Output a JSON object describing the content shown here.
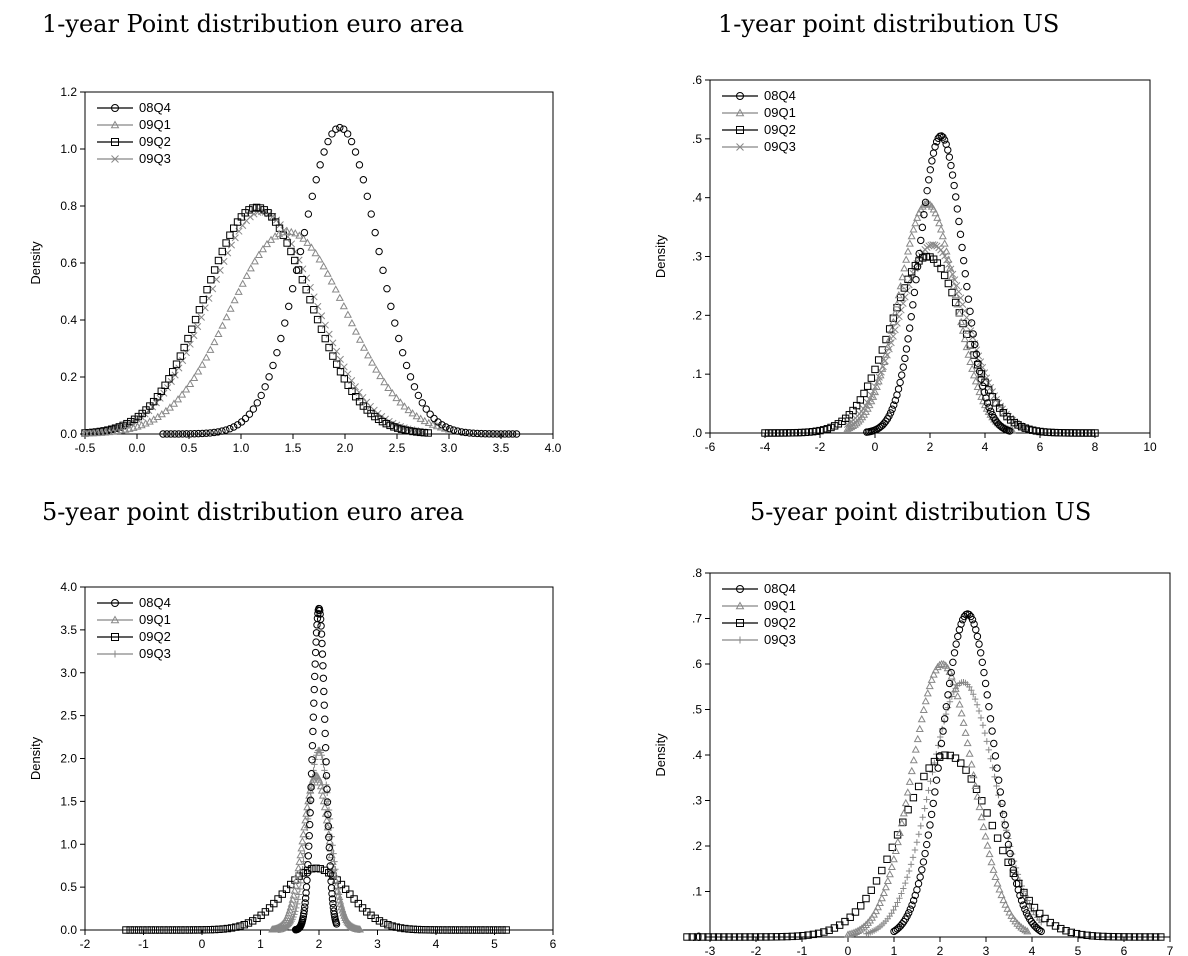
{
  "chart_data": [
    {
      "type": "line",
      "title": "1-year Point distribution euro area",
      "xlabel": "",
      "ylabel": "Density",
      "xlim": [
        -0.5,
        4.0
      ],
      "ylim": [
        0.0,
        1.2
      ],
      "x_ticks": [
        -0.5,
        0.0,
        0.5,
        1.0,
        1.5,
        2.0,
        2.5,
        3.0,
        3.5,
        4.0
      ],
      "x_tick_labels": [
        "-0.5",
        "0.0",
        "0.5",
        "1.0",
        "1.5",
        "2.0",
        "2.5",
        "3.0",
        "3.5",
        "4.0"
      ],
      "y_ticks": [
        0.0,
        0.2,
        0.4,
        0.6,
        0.8,
        1.0,
        1.2
      ],
      "y_tick_labels": [
        "0.0",
        "0.2",
        "0.4",
        "0.6",
        "0.8",
        "1.0",
        "1.2"
      ],
      "grid": false,
      "legend": "top-left",
      "series": [
        {
          "name": "08Q4",
          "marker": "circle",
          "color": "#000000",
          "mean": 1.95,
          "peak": 1.075,
          "x_range": [
            0.25,
            3.65
          ]
        },
        {
          "name": "09Q1",
          "marker": "triangle",
          "color": "#888888",
          "mean": 1.45,
          "peak": 0.71,
          "x_range": [
            -0.5,
            3.0
          ]
        },
        {
          "name": "09Q2",
          "marker": "square",
          "color": "#000000",
          "mean": 1.15,
          "peak": 0.795,
          "x_range": [
            -0.5,
            2.8
          ]
        },
        {
          "name": "09Q3",
          "marker": "x",
          "color": "#888888",
          "mean": 1.2,
          "peak": 0.78,
          "x_range": [
            -0.5,
            2.75
          ]
        }
      ]
    },
    {
      "type": "line",
      "title": "1-year point distribution US",
      "xlabel": "",
      "ylabel": "Density",
      "xlim": [
        -6,
        10
      ],
      "ylim": [
        0.0,
        0.6
      ],
      "x_ticks": [
        -6,
        -4,
        -2,
        0,
        2,
        4,
        6,
        8,
        10
      ],
      "x_tick_labels": [
        "-6",
        "-4",
        "-2",
        "0",
        "2",
        "4",
        "6",
        "8",
        "10"
      ],
      "y_ticks": [
        0.0,
        0.1,
        0.2,
        0.3,
        0.4,
        0.5,
        0.6
      ],
      "y_tick_labels": [
        ".0",
        ".1",
        ".2",
        ".3",
        ".4",
        ".5",
        ".6"
      ],
      "grid": false,
      "legend": "top-left",
      "series": [
        {
          "name": "08Q4",
          "marker": "circle",
          "color": "#000000",
          "mean": 2.4,
          "peak": 0.505,
          "x_range": [
            -0.3,
            4.9
          ]
        },
        {
          "name": "09Q1",
          "marker": "triangle",
          "color": "#888888",
          "mean": 1.9,
          "peak": 0.39,
          "x_range": [
            -1.0,
            5.0
          ]
        },
        {
          "name": "09Q2",
          "marker": "square",
          "color": "#000000",
          "mean": 1.9,
          "peak": 0.3,
          "x_range": [
            -4.0,
            8.0
          ]
        },
        {
          "name": "09Q3",
          "marker": "x",
          "color": "#888888",
          "mean": 2.1,
          "peak": 0.32,
          "x_range": [
            -1.0,
            5.5
          ]
        }
      ]
    },
    {
      "type": "line",
      "title": "5-year point distribution euro area",
      "xlabel": "",
      "ylabel": "Density",
      "xlim": [
        -2,
        6
      ],
      "ylim": [
        0.0,
        4.0
      ],
      "x_ticks": [
        -2,
        -1,
        0,
        1,
        2,
        3,
        4,
        5,
        6
      ],
      "x_tick_labels": [
        "-2",
        "-1",
        "0",
        "1",
        "2",
        "3",
        "4",
        "5",
        "6"
      ],
      "y_ticks": [
        0.0,
        0.5,
        1.0,
        1.5,
        2.0,
        2.5,
        3.0,
        3.5,
        4.0
      ],
      "y_tick_labels": [
        "0.0",
        "0.5",
        "1.0",
        "1.5",
        "2.0",
        "2.5",
        "3.0",
        "3.5",
        "4.0"
      ],
      "grid": false,
      "legend": "top-left",
      "series": [
        {
          "name": "08Q4",
          "marker": "circle",
          "color": "#000000",
          "mean": 2.0,
          "peak": 3.75,
          "x_range": [
            1.6,
            2.3
          ]
        },
        {
          "name": "09Q1",
          "marker": "triangle",
          "color": "#888888",
          "mean": 1.95,
          "peak": 1.8,
          "x_range": [
            1.2,
            2.7
          ]
        },
        {
          "name": "09Q2",
          "marker": "square",
          "color": "#000000",
          "mean": 1.95,
          "peak": 0.72,
          "x_range": [
            -1.3,
            5.2
          ]
        },
        {
          "name": "09Q3",
          "marker": "plus",
          "color": "#888888",
          "mean": 2.0,
          "peak": 2.1,
          "x_range": [
            1.3,
            2.7
          ]
        }
      ]
    },
    {
      "type": "line",
      "title": "5-year point distribution US",
      "xlabel": "",
      "ylabel": "Density",
      "xlim": [
        -3,
        7
      ],
      "ylim": [
        0.0,
        0.8
      ],
      "x_ticks": [
        -3,
        -2,
        -1,
        0,
        1,
        2,
        3,
        4,
        5,
        6,
        7
      ],
      "x_tick_labels": [
        "-3",
        "-2",
        "-1",
        "0",
        "1",
        "2",
        "3",
        "4",
        "5",
        "6",
        "7"
      ],
      "y_ticks": [
        0.0,
        0.1,
        0.2,
        0.3,
        0.4,
        0.5,
        0.6,
        0.7,
        0.8
      ],
      "y_tick_labels": [
        ".0",
        ".1",
        ".2",
        ".3",
        ".4",
        ".5",
        ".6",
        ".7",
        ".8"
      ],
      "grid": false,
      "legend": "top-left",
      "series": [
        {
          "name": "08Q4",
          "marker": "circle",
          "color": "#000000",
          "mean": 2.6,
          "peak": 0.71,
          "x_range": [
            1.0,
            4.2
          ]
        },
        {
          "name": "09Q1",
          "marker": "triangle",
          "color": "#888888",
          "mean": 2.05,
          "peak": 0.6,
          "x_range": [
            0.0,
            3.9
          ]
        },
        {
          "name": "09Q2",
          "marker": "square",
          "color": "#000000",
          "mean": 2.15,
          "peak": 0.4,
          "x_range": [
            -3.5,
            6.8
          ]
        },
        {
          "name": "09Q3",
          "marker": "plus",
          "color": "#888888",
          "mean": 2.5,
          "peak": 0.56,
          "x_range": [
            0.4,
            4.2
          ]
        }
      ]
    }
  ]
}
